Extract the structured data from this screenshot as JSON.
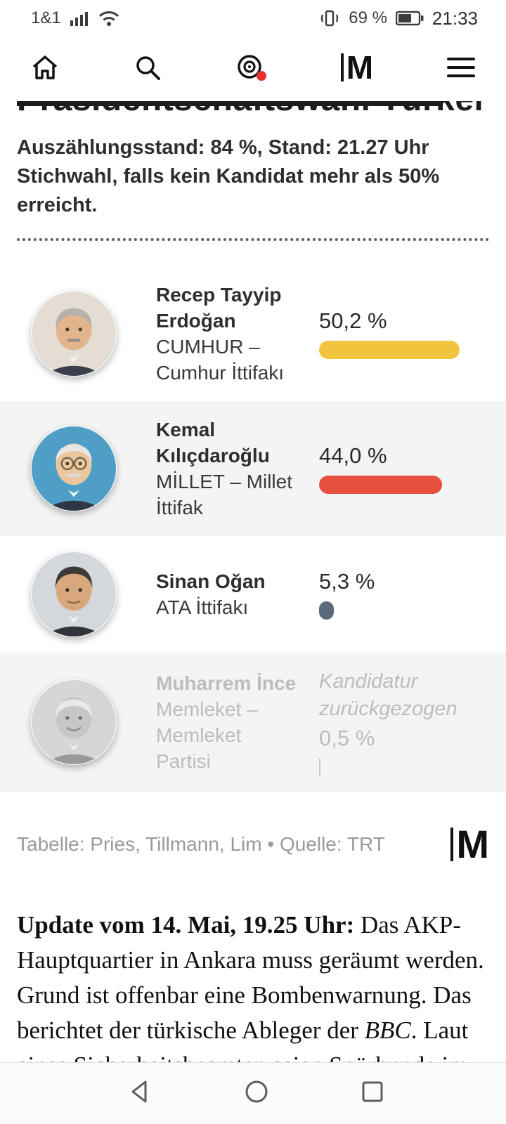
{
  "status_bar": {
    "carrier": "1&1",
    "battery": "69 %",
    "time": "21:33"
  },
  "top_nav": {
    "logo": "M"
  },
  "article_header": {
    "headline": "Präsidentschaftswahl Türkei",
    "count_line": "Auszählungsstand: 84 %, Stand: 21.27 Uhr",
    "runoff_line": "Stichwahl, falls kein Kandidat mehr als 50% erreicht."
  },
  "chart_data": {
    "type": "bar",
    "title": "Präsidentschaftswahl Türkei",
    "subtitle": "Auszählungsstand: 84 %, Stand: 21.27 Uhr",
    "categories": [
      "Recep Tayyip Erdoğan",
      "Kemal Kılıçdaroğlu",
      "Sinan Oğan",
      "Muharrem İnce"
    ],
    "values": [
      50.2,
      44.0,
      5.3,
      0.5
    ],
    "unit": "percent",
    "bar_colors": [
      "#f2c33c",
      "#e6503f",
      "#5b6b7b",
      "#c9c9c9"
    ],
    "annotations": [
      "",
      "",
      "",
      "Kandidatur zurückgezogen"
    ],
    "source": "Tabelle: Pries, Tillmann, Lim • Quelle: TRT"
  },
  "candidates": [
    {
      "name": "Recep Tayyip Erdoğan",
      "party": "CUMHUR – Cumhur İttifakı",
      "value": "50,2 %",
      "percent": 50.2,
      "color": "#f2c33c"
    },
    {
      "name": "Kemal Kılıçdaroğlu",
      "party": "MİLLET – Millet İttifak",
      "value": "44,0 %",
      "percent": 44.0,
      "color": "#e6503f"
    },
    {
      "name": "Sinan Oğan",
      "party": "ATA İttifakı",
      "value": "5,3 %",
      "percent": 5.3,
      "color": "#5b6b7b"
    },
    {
      "name": "Muharrem İnce",
      "party": "Memleket – Memleket Partisi",
      "note": "Kandidatur zurückgezogen",
      "value": "0,5 %",
      "percent": 0.5,
      "color": "#c9c9c9"
    }
  ],
  "credits": {
    "text": "Tabelle: Pries, Tillmann, Lim • Quelle: TRT",
    "logo": "M"
  },
  "article": {
    "lead": "Update vom 14. Mai, 19.25 Uhr:",
    "body_1": " Das AKP-Hauptquartier in Ankara muss geräumt werden. Grund ist offenbar eine Bombenwarnung. Das berichtet der türkische Ableger der ",
    "body_italic": "BBC",
    "body_2": ". Laut eines Sicherheitsbeamten seien Spürhunde im"
  }
}
